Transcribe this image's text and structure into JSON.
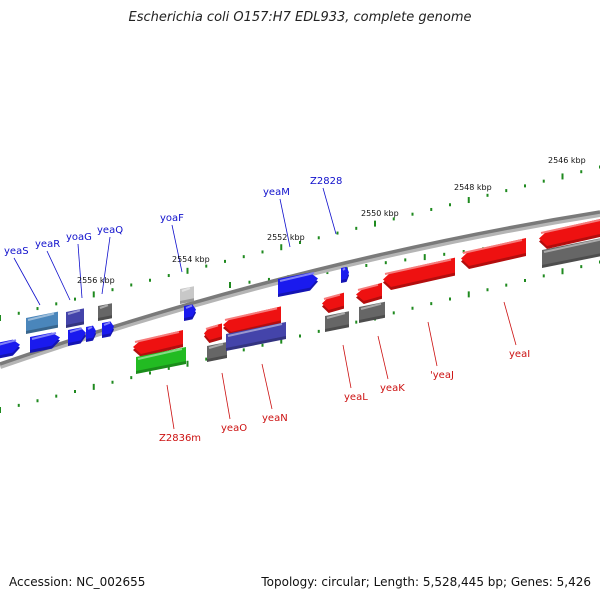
{
  "title": "Escherichia coli O157:H7 EDL933, complete genome",
  "footer": {
    "accession": "Accession: NC_002655",
    "topology": "Topology: circular; Length: 5,528,445 bp; Genes: 5,426"
  },
  "colors": {
    "backbone": "#7a7a7a",
    "tick": "#1f8a1f",
    "forward_label": "#1010cc",
    "reverse_label": "#cc1111",
    "red": "#ee1111",
    "blue": "#1a1aee",
    "gray": "#666666",
    "slate": "#4444aa",
    "steel": "#4a86bb",
    "green": "#22bb22",
    "lightgray": "#c8c8c8"
  },
  "kbp_labels": [
    "2546 kbp",
    "2548 kbp",
    "2550 kbp",
    "2552 kbp",
    "2554 kbp",
    "2556 kbp"
  ],
  "forward_genes": [
    "yeaS",
    "yeaR",
    "yoaG",
    "yeaQ",
    "yoaF",
    "yeaM",
    "Z2828"
  ],
  "reverse_genes": [
    "Z2836m",
    "yeaO",
    "yeaN",
    "yeaL",
    "yeaK",
    "'yeaJ",
    "yeaI"
  ]
}
